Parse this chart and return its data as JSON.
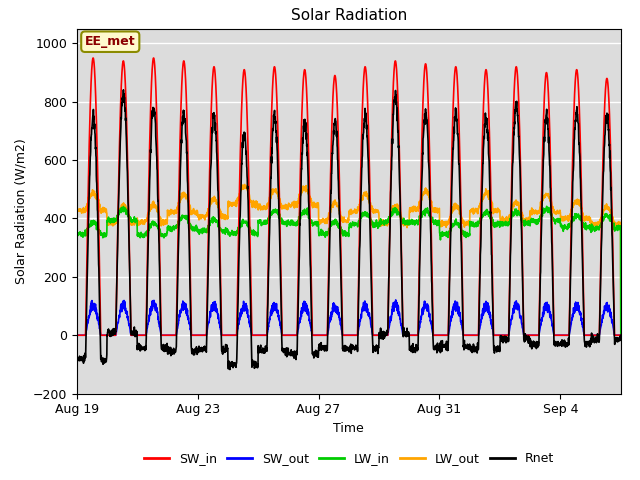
{
  "title": "Solar Radiation",
  "xlabel": "Time",
  "ylabel": "Solar Radiation (W/m2)",
  "ylim": [
    -200,
    1050
  ],
  "yticks": [
    -200,
    0,
    200,
    400,
    600,
    800,
    1000
  ],
  "xtick_labels": [
    "Aug 19",
    "Aug 23",
    "Aug 27",
    "Aug 31",
    "Sep 4"
  ],
  "xtick_positions": [
    0,
    4,
    8,
    12,
    16
  ],
  "series": {
    "SW_in": {
      "color": "#FF0000",
      "lw": 1.2
    },
    "SW_out": {
      "color": "#0000FF",
      "lw": 1.2
    },
    "LW_in": {
      "color": "#00CC00",
      "lw": 1.2
    },
    "LW_out": {
      "color": "#FFA500",
      "lw": 1.2
    },
    "Rnet": {
      "color": "#000000",
      "lw": 1.2
    }
  },
  "annotation_text": "EE_met",
  "bg_color": "#DCDCDC",
  "fig_bg": "#FFFFFF",
  "n_days": 18,
  "points_per_day": 144
}
